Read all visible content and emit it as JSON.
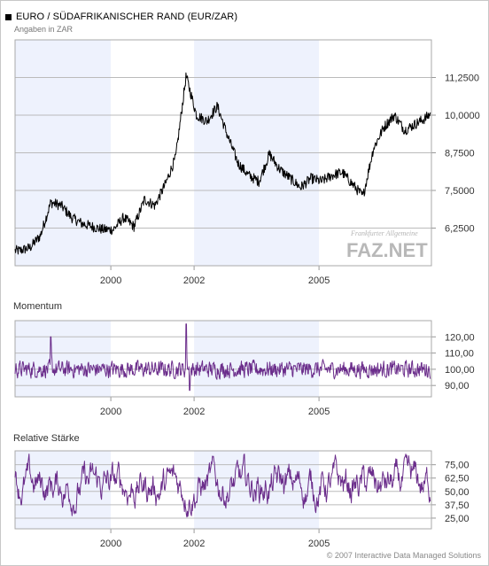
{
  "header": {
    "title": "EURO / SÜDAFRIKANISCHER RAND (EUR/ZAR)",
    "subtitle": "Angaben in ZAR"
  },
  "footer": {
    "copyright": "© 2007 Interactive Data Managed Solutions"
  },
  "logo": {
    "small": "Frankfurter Allgemeine",
    "main": "FAZ.NET"
  },
  "colors": {
    "price_line": "#000000",
    "indicator_line": "#6b2d8b",
    "shade": "#eef2fd",
    "grid": "#bbbbbb",
    "border": "#aaaaaa"
  },
  "chart_data": [
    {
      "type": "line",
      "name": "price",
      "title": "EURO / SÜDAFRIKANISCHER RAND (EUR/ZAR)",
      "subtitle": "Angaben in ZAR",
      "ylim": [
        5.0,
        12.5
      ],
      "yticks": [
        "6,2500",
        "7,5000",
        "8,7500",
        "10,0000",
        "11,2500"
      ],
      "ytick_values": [
        6.25,
        7.5,
        8.75,
        10.0,
        11.25
      ],
      "xticks": [
        "2000",
        "2002",
        "2005"
      ],
      "x": [
        "1997-09",
        "1997-12",
        "1998-03",
        "1998-06",
        "1998-09",
        "1998-12",
        "1999-03",
        "1999-06",
        "1999-09",
        "1999-12",
        "2000-03",
        "2000-06",
        "2000-09",
        "2000-12",
        "2001-03",
        "2001-06",
        "2001-09",
        "2001-12",
        "2002-03",
        "2002-06",
        "2002-09",
        "2002-12",
        "2003-03",
        "2003-06",
        "2003-09",
        "2003-12",
        "2004-03",
        "2004-06",
        "2004-09",
        "2004-12",
        "2005-03",
        "2005-06",
        "2005-09",
        "2005-12",
        "2006-03",
        "2006-06",
        "2006-09",
        "2006-12",
        "2007-03",
        "2007-06",
        "2007-09"
      ],
      "values": [
        5.5,
        5.6,
        6.0,
        7.1,
        7.0,
        6.6,
        6.4,
        6.3,
        6.2,
        6.2,
        6.6,
        6.3,
        7.2,
        7.0,
        7.7,
        8.6,
        11.3,
        10.0,
        9.8,
        10.3,
        9.3,
        8.4,
        8.0,
        7.8,
        8.7,
        8.2,
        7.9,
        7.6,
        7.9,
        7.8,
        8.0,
        8.1,
        7.7,
        7.3,
        8.9,
        9.6,
        10.0,
        9.5,
        9.7,
        9.9,
        10.2
      ],
      "grid": true,
      "legend": "none"
    },
    {
      "type": "line",
      "name": "momentum",
      "title": "Momentum",
      "ylim": [
        83,
        130
      ],
      "yticks": [
        "90,00",
        "100,00",
        "110,00",
        "120,00"
      ],
      "ytick_values": [
        90,
        100,
        110,
        120
      ],
      "xticks": [
        "2000",
        "2002",
        "2005"
      ],
      "baseline": 100,
      "notable_points": [
        {
          "x": "1998-06",
          "y": 120
        },
        {
          "x": "2001-09",
          "y": 128
        },
        {
          "x": "2001-10",
          "y": 87
        }
      ],
      "grid": true,
      "legend": "none"
    },
    {
      "type": "line",
      "name": "relative_staerke",
      "title": "Relative Stärke",
      "ylim": [
        15,
        88
      ],
      "yticks": [
        "25,00",
        "37,50",
        "50,00",
        "62,50",
        "75,00"
      ],
      "ytick_values": [
        25,
        37.5,
        50,
        62.5,
        75
      ],
      "xticks": [
        "2000",
        "2002",
        "2005"
      ],
      "range": [
        18,
        85
      ],
      "grid": true,
      "legend": "none"
    }
  ]
}
